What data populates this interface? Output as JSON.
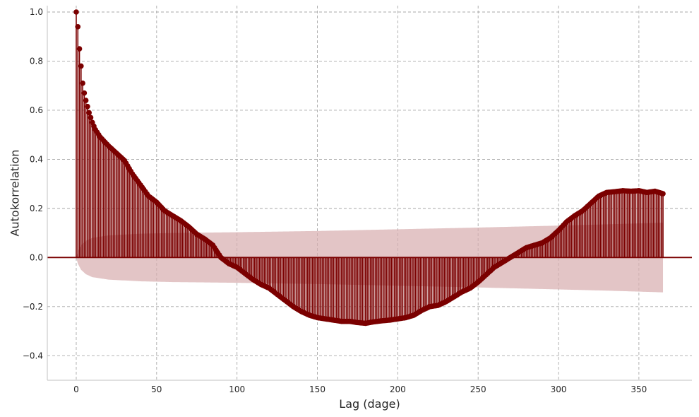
{
  "chart_data": {
    "type": "stem",
    "title": "",
    "xlabel": "Lag (dage)",
    "ylabel": "Autokorrelation",
    "xlim": [
      -18,
      383
    ],
    "ylim": [
      -0.5,
      1.0
    ],
    "x_ticks": [
      0,
      50,
      100,
      150,
      200,
      250,
      300,
      350
    ],
    "y_ticks": [
      -0.4,
      -0.2,
      0.0,
      0.2,
      0.4,
      0.6,
      0.8,
      1.0
    ],
    "y_tick_labels": [
      "−0.4",
      "−0.2",
      "0.0",
      "0.2",
      "0.4",
      "0.6",
      "0.8",
      "1.0"
    ],
    "grid": true,
    "max_lag": 365,
    "acf_keypoints": [
      [
        0,
        1.0
      ],
      [
        1,
        0.94
      ],
      [
        2,
        0.85
      ],
      [
        3,
        0.78
      ],
      [
        4,
        0.71
      ],
      [
        5,
        0.67
      ],
      [
        6,
        0.64
      ],
      [
        7,
        0.615
      ],
      [
        8,
        0.59
      ],
      [
        9,
        0.57
      ],
      [
        10,
        0.55
      ],
      [
        12,
        0.52
      ],
      [
        15,
        0.49
      ],
      [
        20,
        0.455
      ],
      [
        25,
        0.425
      ],
      [
        30,
        0.395
      ],
      [
        35,
        0.34
      ],
      [
        40,
        0.295
      ],
      [
        45,
        0.25
      ],
      [
        50,
        0.225
      ],
      [
        55,
        0.19
      ],
      [
        60,
        0.17
      ],
      [
        65,
        0.15
      ],
      [
        70,
        0.125
      ],
      [
        75,
        0.095
      ],
      [
        80,
        0.075
      ],
      [
        85,
        0.05
      ],
      [
        90,
        0.0
      ],
      [
        95,
        -0.025
      ],
      [
        100,
        -0.04
      ],
      [
        105,
        -0.065
      ],
      [
        110,
        -0.09
      ],
      [
        115,
        -0.11
      ],
      [
        120,
        -0.125
      ],
      [
        125,
        -0.15
      ],
      [
        130,
        -0.175
      ],
      [
        135,
        -0.2
      ],
      [
        140,
        -0.22
      ],
      [
        145,
        -0.235
      ],
      [
        150,
        -0.245
      ],
      [
        155,
        -0.25
      ],
      [
        160,
        -0.255
      ],
      [
        165,
        -0.26
      ],
      [
        170,
        -0.26
      ],
      [
        175,
        -0.265
      ],
      [
        180,
        -0.268
      ],
      [
        185,
        -0.262
      ],
      [
        190,
        -0.258
      ],
      [
        195,
        -0.255
      ],
      [
        200,
        -0.25
      ],
      [
        205,
        -0.245
      ],
      [
        210,
        -0.235
      ],
      [
        215,
        -0.215
      ],
      [
        220,
        -0.2
      ],
      [
        225,
        -0.195
      ],
      [
        230,
        -0.18
      ],
      [
        235,
        -0.16
      ],
      [
        240,
        -0.14
      ],
      [
        245,
        -0.125
      ],
      [
        250,
        -0.1
      ],
      [
        255,
        -0.07
      ],
      [
        260,
        -0.04
      ],
      [
        265,
        -0.02
      ],
      [
        270,
        0.0
      ],
      [
        275,
        0.02
      ],
      [
        280,
        0.04
      ],
      [
        285,
        0.05
      ],
      [
        290,
        0.06
      ],
      [
        295,
        0.08
      ],
      [
        300,
        0.11
      ],
      [
        305,
        0.145
      ],
      [
        310,
        0.17
      ],
      [
        315,
        0.19
      ],
      [
        320,
        0.22
      ],
      [
        325,
        0.25
      ],
      [
        330,
        0.265
      ],
      [
        335,
        0.268
      ],
      [
        340,
        0.272
      ],
      [
        345,
        0.27
      ],
      [
        350,
        0.272
      ],
      [
        355,
        0.265
      ],
      [
        360,
        0.27
      ],
      [
        365,
        0.26
      ]
    ],
    "confidence_band_keypoints": [
      [
        0,
        0.0
      ],
      [
        1,
        0.025
      ],
      [
        3,
        0.05
      ],
      [
        6,
        0.068
      ],
      [
        10,
        0.08
      ],
      [
        20,
        0.09
      ],
      [
        40,
        0.097
      ],
      [
        60,
        0.1
      ],
      [
        100,
        0.103
      ],
      [
        150,
        0.108
      ],
      [
        200,
        0.115
      ],
      [
        250,
        0.122
      ],
      [
        300,
        0.13
      ],
      [
        330,
        0.135
      ],
      [
        345,
        0.138
      ],
      [
        365,
        0.142
      ]
    ],
    "colors": {
      "stem": "#7b0000",
      "band": "#d8aeb0",
      "zero_line": "#7b0000",
      "grid": "#a8a8a8",
      "axis": "#c0c0c0"
    }
  }
}
